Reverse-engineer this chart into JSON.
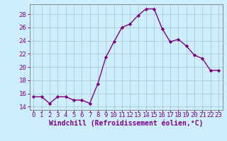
{
  "x": [
    0,
    1,
    2,
    3,
    4,
    5,
    6,
    7,
    8,
    9,
    10,
    11,
    12,
    13,
    14,
    15,
    16,
    17,
    18,
    19,
    20,
    21,
    22,
    23
  ],
  "y": [
    15.5,
    15.5,
    14.5,
    15.5,
    15.5,
    15.0,
    15.0,
    14.5,
    17.5,
    21.5,
    23.8,
    26.0,
    26.5,
    27.8,
    28.8,
    28.8,
    25.8,
    23.8,
    24.2,
    23.2,
    21.8,
    21.3,
    19.5,
    19.5
  ],
  "line_color": "#800080",
  "marker": "D",
  "marker_size": 2.2,
  "bg_color": "#cceeff",
  "grid_color": "#aacccc",
  "xlabel": "Windchill (Refroidissement éolien,°C)",
  "ylabel": "",
  "ylim": [
    13.5,
    29.5
  ],
  "xlim": [
    -0.5,
    23.5
  ],
  "yticks": [
    14,
    16,
    18,
    20,
    22,
    24,
    26,
    28
  ],
  "xticks": [
    0,
    1,
    2,
    3,
    4,
    5,
    6,
    7,
    8,
    9,
    10,
    11,
    12,
    13,
    14,
    15,
    16,
    17,
    18,
    19,
    20,
    21,
    22,
    23
  ],
  "tick_color": "#800080",
  "label_color": "#800080",
  "font_size": 6.5,
  "xlabel_fontsize": 7.0,
  "linewidth": 1.0
}
